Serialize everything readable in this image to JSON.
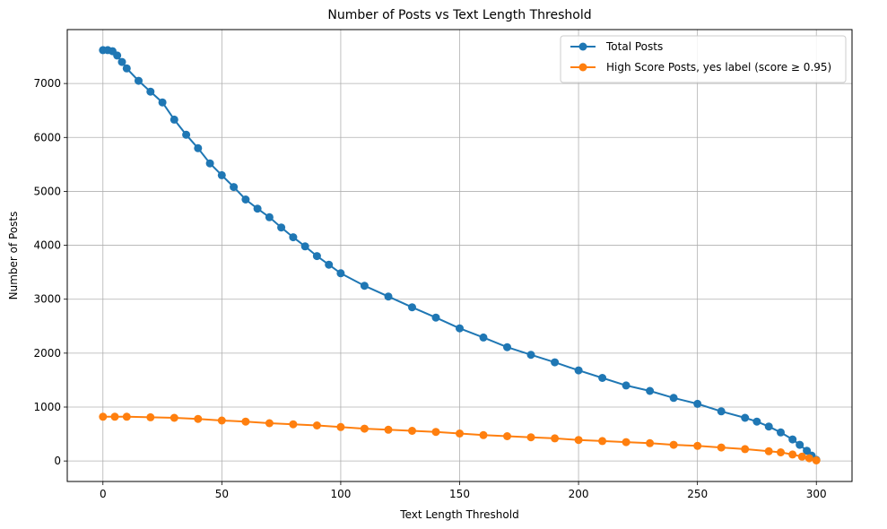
{
  "chart_data": {
    "type": "line",
    "title": "Number of Posts vs Text Length Threshold",
    "xlabel": "Text Length Threshold",
    "ylabel": "Number of Posts",
    "xlim": [
      -15,
      315
    ],
    "ylim": [
      -380,
      8000
    ],
    "xticks": [
      0,
      50,
      100,
      150,
      200,
      250,
      300
    ],
    "yticks": [
      0,
      1000,
      2000,
      3000,
      4000,
      5000,
      6000,
      7000
    ],
    "grid": true,
    "legend_position": "top-right",
    "series": [
      {
        "name": "Total Posts",
        "color": "#1f77b4",
        "marker": "circle",
        "x": [
          0,
          2,
          4,
          6,
          8,
          10,
          15,
          20,
          25,
          30,
          35,
          40,
          45,
          50,
          55,
          60,
          65,
          70,
          75,
          80,
          85,
          90,
          95,
          100,
          110,
          120,
          130,
          140,
          150,
          160,
          170,
          180,
          190,
          200,
          210,
          220,
          230,
          240,
          250,
          260,
          270,
          275,
          280,
          285,
          290,
          293,
          296,
          298,
          300
        ],
        "y": [
          7620,
          7620,
          7600,
          7520,
          7400,
          7280,
          7050,
          6850,
          6650,
          6330,
          6050,
          5800,
          5520,
          5300,
          5080,
          4850,
          4680,
          4520,
          4330,
          4150,
          3980,
          3800,
          3640,
          3480,
          3250,
          3050,
          2850,
          2660,
          2460,
          2290,
          2110,
          1970,
          1830,
          1680,
          1540,
          1400,
          1300,
          1170,
          1060,
          920,
          800,
          730,
          640,
          530,
          400,
          300,
          190,
          100,
          20
        ]
      },
      {
        "name": "High Score Posts, yes label (score ≥ 0.95)",
        "color": "#ff7f0e",
        "marker": "circle",
        "x": [
          0,
          5,
          10,
          20,
          30,
          40,
          50,
          60,
          70,
          80,
          90,
          100,
          110,
          120,
          130,
          140,
          150,
          160,
          170,
          180,
          190,
          200,
          210,
          220,
          230,
          240,
          250,
          260,
          270,
          280,
          285,
          290,
          294,
          297,
          300
        ],
        "y": [
          820,
          820,
          820,
          810,
          800,
          780,
          750,
          730,
          700,
          680,
          660,
          630,
          600,
          580,
          560,
          540,
          510,
          480,
          460,
          440,
          420,
          390,
          370,
          350,
          330,
          300,
          280,
          250,
          220,
          180,
          160,
          120,
          80,
          50,
          10
        ]
      }
    ]
  }
}
